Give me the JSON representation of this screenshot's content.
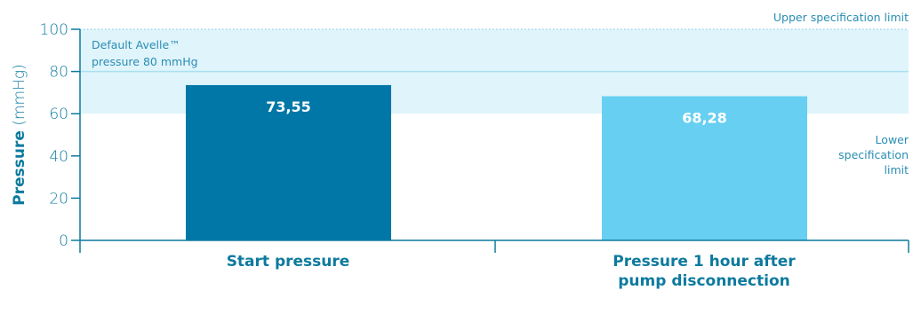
{
  "chart_data": {
    "type": "bar",
    "categories": [
      "Start pressure",
      "Pressure 1 hour after pump disconnection"
    ],
    "category_lines": [
      [
        "Start pressure"
      ],
      [
        "Pressure 1 hour after",
        "pump disconnection"
      ]
    ],
    "values": [
      73.55,
      68.28
    ],
    "value_labels": [
      "73,55",
      "68,28"
    ],
    "bar_colors": [
      "#0077a6",
      "#66cff2"
    ],
    "ylabel_bold": "Pressure",
    "ylabel_unit": "(mmHg)",
    "ylim": [
      0,
      100
    ],
    "yticks": [
      0,
      20,
      40,
      60,
      80,
      100
    ],
    "grid": false,
    "specification_band": {
      "lower": 60,
      "upper": 100,
      "upper_label": "Upper specification limit",
      "lower_label_lines": [
        "Lower",
        "specification",
        "limit"
      ],
      "color": "#e0f4fb"
    },
    "default_pressure": {
      "value": 80,
      "label_lines": [
        "Default Avelle™",
        "pressure 80 mmHg"
      ],
      "color": "#a9e0f2"
    },
    "colors": {
      "axis": "#0d7a9e",
      "text": "#0d7a9e",
      "band_text": "#2a8db3"
    }
  }
}
